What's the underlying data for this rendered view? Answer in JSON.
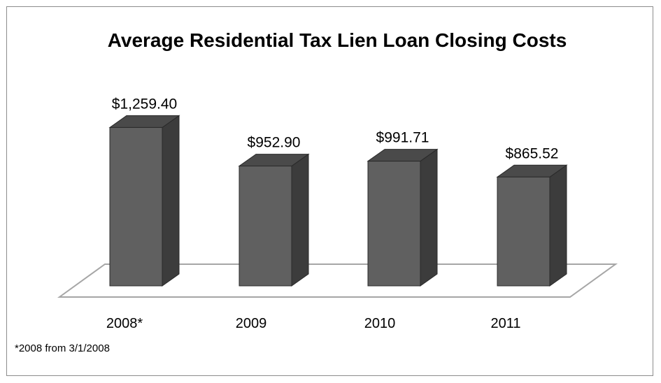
{
  "chart_data": {
    "type": "bar",
    "title": "Average Residential Tax Lien Loan Closing Costs",
    "categories": [
      "2008*",
      "2009",
      "2010",
      "2011"
    ],
    "values": [
      1259.4,
      952.9,
      991.71,
      865.52
    ],
    "data_labels": [
      "$1,259.40",
      "$952.90",
      "$991.71",
      "$865.52"
    ],
    "footnote": "*2008 from 3/1/2008",
    "style": "3d-column",
    "grid": false,
    "legend": "none",
    "colors": {
      "front": "#606060",
      "side": "#3c3c3c",
      "top": "#4a4a4a",
      "floor_stroke": "#a6a6a6",
      "border": "#8c8c8c"
    }
  }
}
